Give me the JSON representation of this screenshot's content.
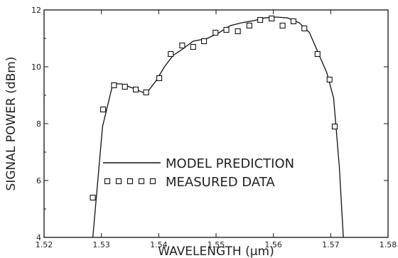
{
  "chart_data": {
    "type": "line",
    "title": "",
    "xlabel": "WAVELENGTH (μm)",
    "ylabel": "SIGNAL POWER (dBm)",
    "xlim": [
      1.52,
      1.58
    ],
    "ylim": [
      4,
      12
    ],
    "xticks": [
      "1.52",
      "1.53",
      "1.54",
      "1.55",
      "1.56",
      "1.57",
      "1.58"
    ],
    "yticks": [
      "4",
      "6",
      "8",
      "10",
      "12"
    ],
    "grid": false,
    "legend_position": "center-left",
    "series": [
      {
        "name": "MODEL PREDICTION",
        "style": "line",
        "color": "#111111",
        "x": [
          1.5285,
          1.5302,
          1.532,
          1.5335,
          1.5355,
          1.5378,
          1.5395,
          1.541,
          1.5425,
          1.544,
          1.546,
          1.5485,
          1.5505,
          1.5525,
          1.5545,
          1.5565,
          1.5585,
          1.5605,
          1.5625,
          1.5645,
          1.5663,
          1.568,
          1.5693,
          1.5705,
          1.5715,
          1.5722
        ],
        "y": [
          4.0,
          7.9,
          9.4,
          9.4,
          9.25,
          9.05,
          9.5,
          10.0,
          10.4,
          10.6,
          10.9,
          11.0,
          11.2,
          11.45,
          11.55,
          11.62,
          11.72,
          11.75,
          11.72,
          11.55,
          11.2,
          10.4,
          9.8,
          8.9,
          6.5,
          4.0
        ]
      },
      {
        "name": "MEASURED DATA",
        "style": "marker",
        "marker": "open-square",
        "color": "#111111",
        "x": [
          1.5285,
          1.5303,
          1.5322,
          1.5341,
          1.536,
          1.5378,
          1.5401,
          1.5421,
          1.5441,
          1.546,
          1.5479,
          1.5499,
          1.5518,
          1.5538,
          1.5558,
          1.5577,
          1.5597,
          1.5616,
          1.5635,
          1.5654,
          1.5677,
          1.5698,
          1.5707
        ],
        "y": [
          5.4,
          8.5,
          9.35,
          9.3,
          9.2,
          9.1,
          9.6,
          10.45,
          10.75,
          10.7,
          10.9,
          11.2,
          11.3,
          11.25,
          11.45,
          11.65,
          11.7,
          11.45,
          11.6,
          11.35,
          10.45,
          9.55,
          7.9
        ]
      }
    ]
  }
}
